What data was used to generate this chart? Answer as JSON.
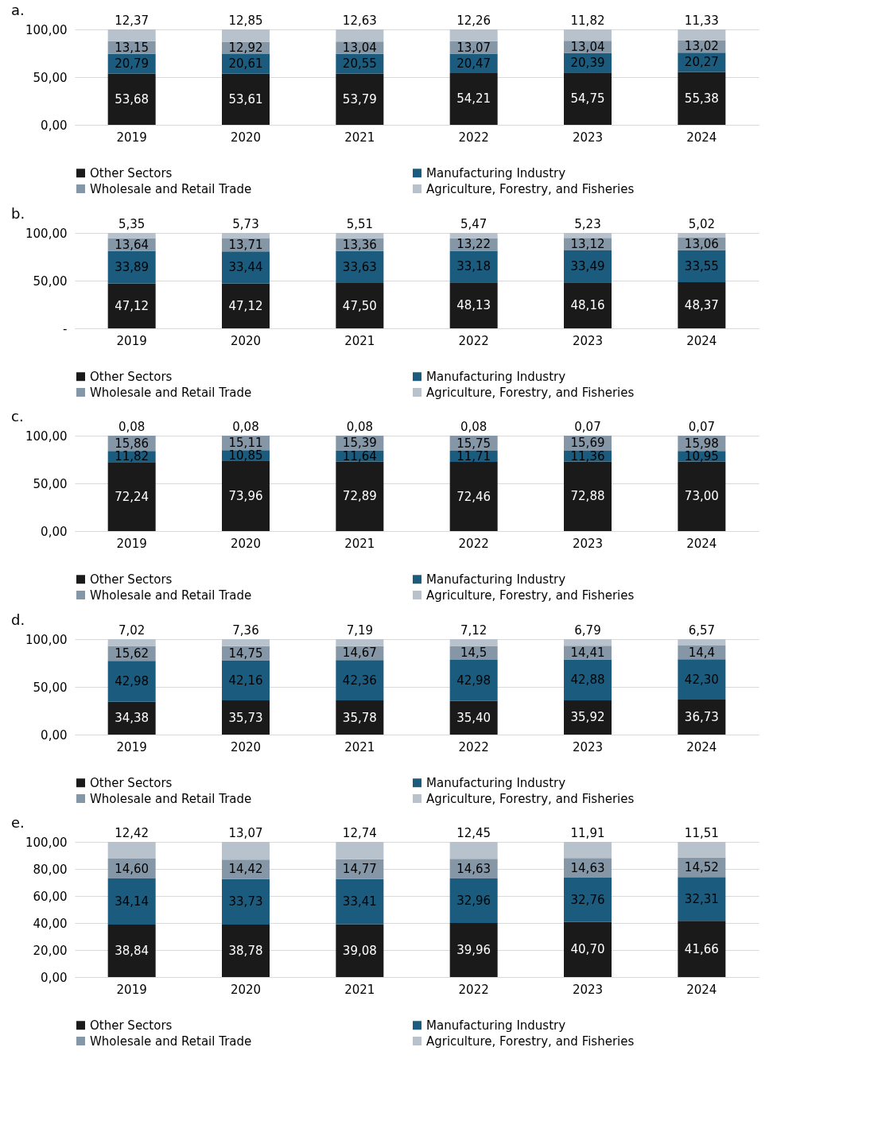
{
  "chart_data": [
    {
      "type": "bar",
      "title": "a.",
      "stacked": true,
      "grid": "y",
      "legend": "bottom",
      "categories": [
        "2019",
        "2020",
        "2021",
        "2022",
        "2023",
        "2024"
      ],
      "ylim": [
        0,
        100
      ],
      "yticks": [
        {
          "value": 0,
          "label": "0,00"
        },
        {
          "value": 50,
          "label": "50,00"
        },
        {
          "value": 100,
          "label": "100,00"
        }
      ],
      "series": [
        {
          "name": "Other Sectors",
          "color": "#1a1a1a",
          "values": [
            53.68,
            53.61,
            53.79,
            54.21,
            54.75,
            55.38
          ],
          "value_labels": [
            "53,68",
            "53,61",
            "53,79",
            "54,21",
            "54,75",
            "55,38"
          ]
        },
        {
          "name": "Manufacturing Industry",
          "color": "#1b5c7e",
          "values": [
            20.79,
            20.61,
            20.55,
            20.47,
            20.39,
            20.27
          ],
          "value_labels": [
            "20,79",
            "20,61",
            "20,55",
            "20,47",
            "20,39",
            "20,27"
          ]
        },
        {
          "name": "Wholesale and Retail Trade",
          "color": "#8596a6",
          "values": [
            13.15,
            12.92,
            13.04,
            13.07,
            13.04,
            13.02
          ],
          "value_labels": [
            "13,15",
            "12,92",
            "13,04",
            "13,07",
            "13,04",
            "13,02"
          ]
        },
        {
          "name": "Agriculture, Forestry, and Fisheries",
          "color": "#b7c2cc",
          "values": [
            12.37,
            12.85,
            12.63,
            12.26,
            11.82,
            11.33
          ],
          "value_labels": [
            "12,37",
            "12,85",
            "12,63",
            "12,26",
            "11,82",
            "11,33"
          ]
        }
      ]
    },
    {
      "type": "bar",
      "title": "b.",
      "stacked": true,
      "grid": "y",
      "legend": "bottom",
      "categories": [
        "2019",
        "2020",
        "2021",
        "2022",
        "2023",
        "2024"
      ],
      "ylim": [
        0,
        100
      ],
      "yticks": [
        {
          "value": 0,
          "label": "-"
        },
        {
          "value": 50,
          "label": "50,00"
        },
        {
          "value": 100,
          "label": "100,00"
        }
      ],
      "series": [
        {
          "name": "Other Sectors",
          "color": "#1a1a1a",
          "values": [
            47.12,
            47.12,
            47.5,
            48.13,
            48.16,
            48.37
          ],
          "value_labels": [
            "47,12",
            "47,12",
            "47,50",
            "48,13",
            "48,16",
            "48,37"
          ]
        },
        {
          "name": "Manufacturing Industry",
          "color": "#1b5c7e",
          "values": [
            33.89,
            33.44,
            33.63,
            33.18,
            33.49,
            33.55
          ],
          "value_labels": [
            "33,89",
            "33,44",
            "33,63",
            "33,18",
            "33,49",
            "33,55"
          ]
        },
        {
          "name": "Wholesale and Retail Trade",
          "color": "#8596a6",
          "values": [
            13.64,
            13.71,
            13.36,
            13.22,
            13.12,
            13.06
          ],
          "value_labels": [
            "13,64",
            "13,71",
            "13,36",
            "13,22",
            "13,12",
            "13,06"
          ]
        },
        {
          "name": "Agriculture, Forestry, and Fisheries",
          "color": "#b7c2cc",
          "values": [
            5.35,
            5.73,
            5.51,
            5.47,
            5.23,
            5.02
          ],
          "value_labels": [
            "5,35",
            "5,73",
            "5,51",
            "5,47",
            "5,23",
            "5,02"
          ]
        }
      ]
    },
    {
      "type": "bar",
      "title": "c.",
      "stacked": true,
      "grid": "y",
      "legend": "bottom",
      "categories": [
        "2019",
        "2020",
        "2021",
        "2022",
        "2023",
        "2024"
      ],
      "ylim": [
        0,
        100
      ],
      "yticks": [
        {
          "value": 0,
          "label": "0,00"
        },
        {
          "value": 50,
          "label": "50,00"
        },
        {
          "value": 100,
          "label": "100,00"
        }
      ],
      "series": [
        {
          "name": "Other Sectors",
          "color": "#1a1a1a",
          "values": [
            72.24,
            73.96,
            72.89,
            72.46,
            72.88,
            73.0
          ],
          "value_labels": [
            "72,24",
            "73,96",
            "72,89",
            "72,46",
            "72,88",
            "73,00"
          ]
        },
        {
          "name": "Manufacturing Industry",
          "color": "#1b5c7e",
          "values": [
            11.82,
            10.85,
            11.64,
            11.71,
            11.36,
            10.95
          ],
          "value_labels": [
            "11,82",
            "10,85",
            "11,64",
            "11,71",
            "11,36",
            "10,95"
          ]
        },
        {
          "name": "Wholesale and Retail Trade",
          "color": "#8596a6",
          "values": [
            15.86,
            15.11,
            15.39,
            15.75,
            15.69,
            15.98
          ],
          "value_labels": [
            "15,86",
            "15,11",
            "15,39",
            "15,75",
            "15,69",
            "15,98"
          ]
        },
        {
          "name": "Agriculture, Forestry, and Fisheries",
          "color": "#b7c2cc",
          "values": [
            0.08,
            0.08,
            0.08,
            0.08,
            0.07,
            0.07
          ],
          "value_labels": [
            "0,08",
            "0,08",
            "0,08",
            "0,08",
            "0,07",
            "0,07"
          ]
        }
      ]
    },
    {
      "type": "bar",
      "title": "d.",
      "stacked": true,
      "grid": "y",
      "legend": "bottom",
      "categories": [
        "2019",
        "2020",
        "2021",
        "2022",
        "2023",
        "2024"
      ],
      "ylim": [
        0,
        100
      ],
      "yticks": [
        {
          "value": 0,
          "label": "0,00"
        },
        {
          "value": 50,
          "label": "50,00"
        },
        {
          "value": 100,
          "label": "100,00"
        }
      ],
      "series": [
        {
          "name": "Other Sectors",
          "color": "#1a1a1a",
          "values": [
            34.38,
            35.73,
            35.78,
            35.4,
            35.92,
            36.73
          ],
          "value_labels": [
            "34,38",
            "35,73",
            "35,78",
            "35,40",
            "35,92",
            "36,73"
          ]
        },
        {
          "name": "Manufacturing Industry",
          "color": "#1b5c7e",
          "values": [
            42.98,
            42.16,
            42.36,
            42.98,
            42.88,
            42.3
          ],
          "value_labels": [
            "42,98",
            "42,16",
            "42,36",
            "42,98",
            "42,88",
            "42,30"
          ]
        },
        {
          "name": "Wholesale and Retail Trade",
          "color": "#8596a6",
          "values": [
            15.62,
            14.75,
            14.67,
            14.5,
            14.41,
            14.4
          ],
          "value_labels": [
            "15,62",
            "14,75",
            "14,67",
            "14,5",
            "14,41",
            "14,4"
          ]
        },
        {
          "name": "Agriculture, Forestry, and Fisheries",
          "color": "#b7c2cc",
          "values": [
            7.02,
            7.36,
            7.19,
            7.12,
            6.79,
            6.57
          ],
          "value_labels": [
            "7,02",
            "7,36",
            "7,19",
            "7,12",
            "6,79",
            "6,57"
          ]
        }
      ]
    },
    {
      "type": "bar",
      "title": "e.",
      "stacked": true,
      "grid": "y",
      "legend": "bottom",
      "categories": [
        "2019",
        "2020",
        "2021",
        "2022",
        "2023",
        "2024"
      ],
      "ylim": [
        0,
        100
      ],
      "yticks": [
        {
          "value": 0,
          "label": "0,00"
        },
        {
          "value": 20,
          "label": "20,00"
        },
        {
          "value": 40,
          "label": "40,00"
        },
        {
          "value": 60,
          "label": "60,00"
        },
        {
          "value": 80,
          "label": "80,00"
        },
        {
          "value": 100,
          "label": "100,00"
        }
      ],
      "series": [
        {
          "name": "Other Sectors",
          "color": "#1a1a1a",
          "values": [
            38.84,
            38.78,
            39.08,
            39.96,
            40.7,
            41.66
          ],
          "value_labels": [
            "38,84",
            "38,78",
            "39,08",
            "39,96",
            "40,70",
            "41,66"
          ]
        },
        {
          "name": "Manufacturing Industry",
          "color": "#1b5c7e",
          "values": [
            34.14,
            33.73,
            33.41,
            32.96,
            32.76,
            32.31
          ],
          "value_labels": [
            "34,14",
            "33,73",
            "33,41",
            "32,96",
            "32,76",
            "32,31"
          ]
        },
        {
          "name": "Wholesale and Retail Trade",
          "color": "#8596a6",
          "values": [
            14.6,
            14.42,
            14.77,
            14.63,
            14.63,
            14.52
          ],
          "value_labels": [
            "14,60",
            "14,42",
            "14,77",
            "14,63",
            "14,63",
            "14,52"
          ]
        },
        {
          "name": "Agriculture, Forestry, and Fisheries",
          "color": "#b7c2cc",
          "values": [
            12.42,
            13.07,
            12.74,
            12.45,
            11.91,
            11.51
          ],
          "value_labels": [
            "12,42",
            "13,07",
            "12,74",
            "12,45",
            "11,91",
            "11,51"
          ]
        }
      ]
    }
  ]
}
